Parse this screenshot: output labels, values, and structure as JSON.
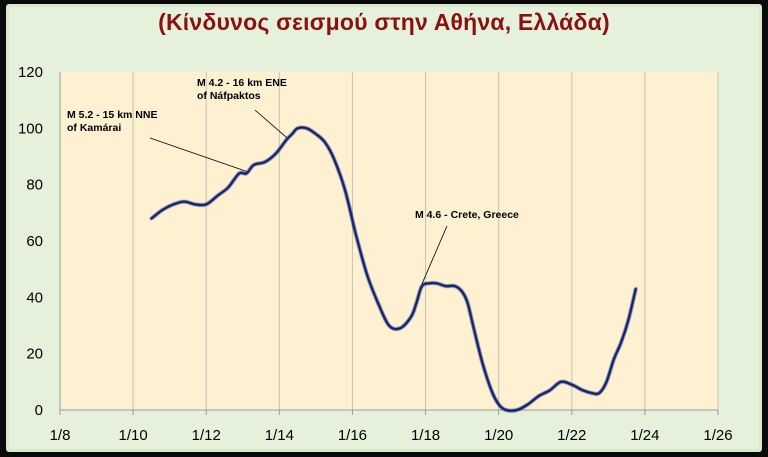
{
  "chart_data": {
    "type": "line",
    "title": "(Κίνδυνος σεισμού στην Αθήνα, Ελλάδα)",
    "xlabel": "",
    "ylabel": "",
    "xlim": [
      0,
      18
    ],
    "ylim": [
      0,
      120
    ],
    "x_ticks": [
      0,
      2,
      4,
      6,
      8,
      10,
      12,
      14,
      16,
      18
    ],
    "x_tick_labels": [
      "1/8",
      "1/10",
      "1/12",
      "1/14",
      "1/16",
      "1/18",
      "1/20",
      "1/22",
      "1/24",
      "1/26"
    ],
    "y_ticks": [
      0,
      20,
      40,
      60,
      80,
      100,
      120
    ],
    "y_tick_labels": [
      "0",
      "20",
      "40",
      "60",
      "80",
      "100",
      "120"
    ],
    "grid": "vertical",
    "colors": {
      "line": "#0d1f6e",
      "plot_bg": "#fdf1d2",
      "title": "#8b1010",
      "panel_bg": "#e6f1dc"
    },
    "series": [
      {
        "x": [
          2.5,
          2.8,
          3.1,
          3.4,
          3.7,
          4.0,
          4.3,
          4.6,
          4.9,
          5.1,
          5.3,
          5.6,
          5.9,
          6.2,
          6.35,
          6.5,
          6.75,
          7.0,
          7.25,
          7.5,
          7.8,
          8.1,
          8.4,
          8.7,
          9.0,
          9.3,
          9.6,
          9.75,
          9.9,
          10.1,
          10.3,
          10.55,
          10.8,
          11.0,
          11.15,
          11.3,
          11.55,
          11.8,
          12.0,
          12.2,
          12.5,
          12.8,
          13.1,
          13.4,
          13.7,
          14.0,
          14.3,
          14.55,
          14.75,
          14.95,
          15.15,
          15.35,
          15.55,
          15.75
        ],
        "y": [
          68,
          71,
          73,
          74,
          73,
          73,
          76,
          79,
          84,
          84,
          87,
          88,
          91,
          96,
          98,
          100,
          100,
          98,
          95,
          89,
          78,
          62,
          48,
          38,
          30,
          29,
          33,
          38,
          44,
          45,
          45,
          44,
          44,
          42,
          38,
          30,
          17,
          7,
          2,
          0,
          0,
          2,
          5,
          7,
          10,
          9,
          7,
          6,
          6,
          10,
          18,
          24,
          32,
          43
        ]
      }
    ],
    "annotations": [
      {
        "lines": [
          "M 5.2 - 15 km NNE",
          "of Kamárai"
        ],
        "x": 5.1,
        "y": 84
      },
      {
        "lines": [
          "M 4.2 - 16 km ENE",
          "of Náfpaktos"
        ],
        "x": 6.2,
        "y": 96
      },
      {
        "lines": [
          "M 4.6 - Crete, Greece"
        ],
        "x": 9.9,
        "y": 44
      }
    ]
  }
}
